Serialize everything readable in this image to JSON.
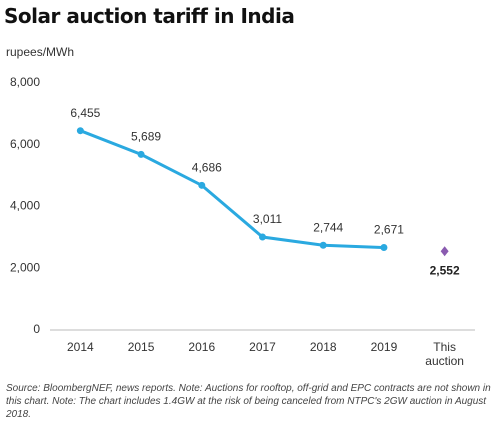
{
  "chart_data": {
    "type": "line",
    "title": "Solar auction tariff in India",
    "y_label": "rupees/MWh",
    "categories": [
      "2014",
      "2015",
      "2016",
      "2017",
      "2018",
      "2019",
      "This auction"
    ],
    "series": [
      {
        "color": "#2aa9e0",
        "marker": "circle",
        "values": [
          6455,
          5689,
          4686,
          3011,
          2744,
          2671,
          null
        ],
        "value_labels": [
          "6,455",
          "5,689",
          "4,686",
          "3,011",
          "2,744",
          "2,671",
          null
        ]
      },
      {
        "color": "#8a5bb0",
        "marker": "diamond",
        "values": [
          null,
          null,
          null,
          null,
          null,
          null,
          2552
        ],
        "value_labels": [
          null,
          null,
          null,
          null,
          null,
          null,
          "2,552"
        ]
      }
    ],
    "ylim": [
      0,
      8000
    ],
    "yticks": [
      0,
      {
        "value": 2000,
        "label": "2,000"
      },
      {
        "value": 4000,
        "label": "4,000"
      },
      {
        "value": 6000,
        "label": "6,000"
      },
      {
        "value": 8000,
        "label": "8,000"
      }
    ],
    "source": "Source: BloombergNEF, news reports. Note: Auctions for rooftop, off-grid and EPC contracts are not shown in this chart. Note: The chart includes 1.4GW at the risk of being canceled from NTPC's 2GW auction in August 2018."
  }
}
